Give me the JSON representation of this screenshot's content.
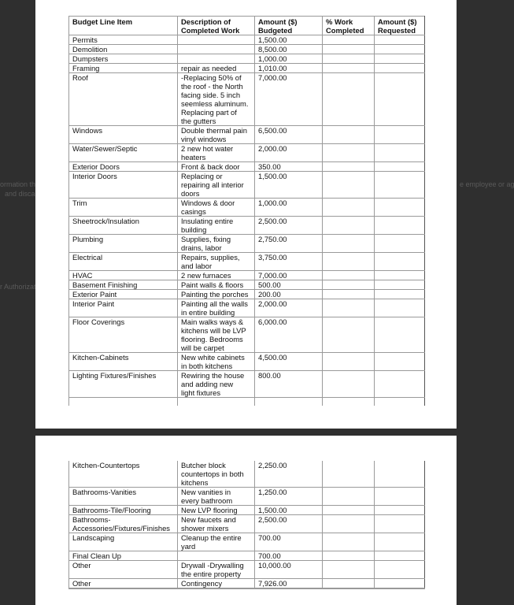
{
  "background_ghost_text": [
    "ormation tha",
    "and discar",
    "e employee or age",
    "r Authorizat"
  ],
  "table": {
    "headers": [
      "Budget Line Item",
      "Description of\nCompleted Work",
      "Amount ($)\nBudgeted",
      "% Work\nCompleted",
      "Amount ($)\nRequested"
    ],
    "page1_rows": [
      [
        "Permits",
        "",
        "1,500.00",
        "",
        ""
      ],
      [
        "Demolition",
        "",
        "8,500.00",
        "",
        ""
      ],
      [
        "Dumpsters",
        "",
        "1,000.00",
        "",
        ""
      ],
      [
        "Framing",
        "repair as needed",
        "1,010.00",
        "",
        ""
      ],
      [
        "Roof",
        "-Replacing 50% of\nthe roof - the North\nfacing side. 5 inch\nseemless aluminum.\nReplacing part of\nthe gutters",
        "7,000.00",
        "",
        ""
      ],
      [
        "Windows",
        "Double thermal pain\nvinyl windows",
        "6,500.00",
        "",
        ""
      ],
      [
        "Water/Sewer/Septic",
        "2 new hot water\nheaters",
        "2,000.00",
        "",
        ""
      ],
      [
        "Exterior Doors",
        "Front & back door",
        "350.00",
        "",
        ""
      ],
      [
        "Interior Doors",
        "Replacing or\nrepairing all interior\ndoors",
        "1,500.00",
        "",
        ""
      ],
      [
        "Trim",
        "Windows & door\ncasings",
        "1,000.00",
        "",
        ""
      ],
      [
        "Sheetrock/Insulation",
        "Insulating entire\nbuilding",
        "2,500.00",
        "",
        ""
      ],
      [
        "Plumbing",
        "Supplies, fixing\ndrains, labor",
        "2,750.00",
        "",
        ""
      ],
      [
        "Electrical",
        "Repairs, supplies,\nand labor",
        "3,750.00",
        "",
        ""
      ],
      [
        "HVAC",
        "2 new furnaces",
        "7,000.00",
        "",
        ""
      ],
      [
        "Basement Finishing",
        "Paint walls & floors",
        "500.00",
        "",
        ""
      ],
      [
        "Exterior Paint",
        "Painting the porches",
        "200.00",
        "",
        ""
      ],
      [
        "Interior Paint",
        "Painting all the walls\nin entire building",
        "2,000.00",
        "",
        ""
      ],
      [
        "Floor Coverings",
        "Main walks ways &\nkitchens will be LVP\nflooring. Bedrooms\nwill be carpet",
        "6,000.00",
        "",
        ""
      ],
      [
        "Kitchen-Cabinets",
        "New white cabinets\nin both kitchens",
        "4,500.00",
        "",
        ""
      ],
      [
        "Lighting Fixtures/Finishes",
        "Rewiring the house\nand adding new\nlight fixtures",
        "800.00",
        "",
        ""
      ]
    ],
    "page2_rows": [
      [
        "Kitchen-Countertops",
        "Butcher block\ncountertops in both\nkitchens",
        "2,250.00",
        "",
        ""
      ],
      [
        "Bathrooms-Vanities",
        "New vanities in\nevery bathroom",
        "1,250.00",
        "",
        ""
      ],
      [
        "Bathrooms-Tile/Flooring",
        "New LVP flooring",
        "1,500.00",
        "",
        ""
      ],
      [
        "Bathrooms-\nAccessories/Fixtures/Finishes",
        "New faucets and\nshower mixers",
        "2,500.00",
        "",
        ""
      ],
      [
        "Landscaping",
        "Cleanup the entire\nyard",
        "700.00",
        "",
        ""
      ],
      [
        "Final Clean Up",
        "",
        "700.00",
        "",
        ""
      ],
      [
        "Other",
        "Drywall -Drywalling\nthe entire property",
        "10,000.00",
        "",
        ""
      ],
      [
        "Other",
        "Contingency",
        "7,926.00",
        "",
        ""
      ]
    ]
  }
}
